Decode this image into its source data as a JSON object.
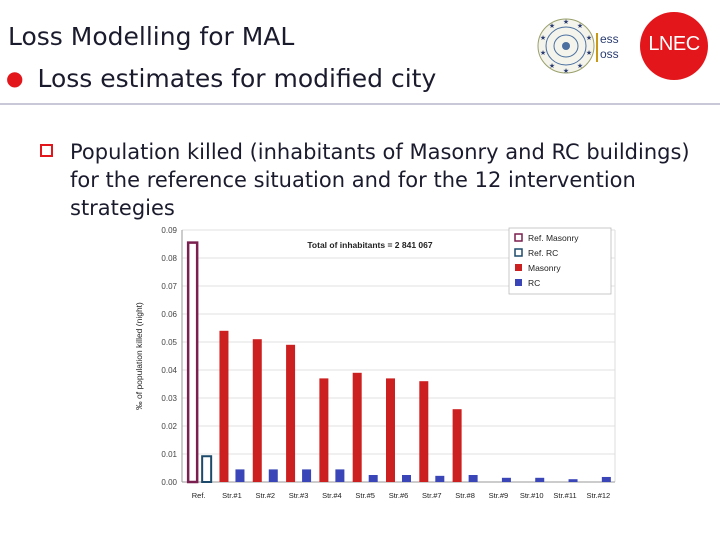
{
  "slide": {
    "title": "Loss Modelling for MAL",
    "subtitle": "Loss estimates for modified city",
    "paragraph": "Population killed (inhabitants of Masonry and RC buildings) for the reference situation and for the 12 intervention strategies"
  },
  "logos": {
    "ess_text_1": "ess",
    "ess_text_2": "oss",
    "lnec": "LNEC"
  },
  "colors": {
    "masonry": "#cc1f1f",
    "rc": "#3a45b8",
    "ref_masonry_outline": "#7a1f4f",
    "ref_rc_outline": "#1d4a6b",
    "accent": "#e3161b"
  },
  "chart_data": {
    "type": "bar",
    "annotation": "Total of inhabitants = 2 841 067",
    "ylabel": "‰ of population killed (night)",
    "xlabel": "",
    "ylim": [
      0,
      0.09
    ],
    "yticks": [
      "0.00",
      "0.01",
      "0.02",
      "0.03",
      "0.04",
      "0.05",
      "0.06",
      "0.07",
      "0.08",
      "0.09"
    ],
    "legend_position": "top-right",
    "legend": [
      "Ref. Masonry",
      "Ref. RC",
      "Masonry",
      "RC"
    ],
    "categories": [
      "Ref.",
      "Str.#1",
      "Str.#2",
      "Str.#3",
      "Str.#4",
      "Str.#5",
      "Str.#6",
      "Str.#7",
      "Str.#8",
      "Str.#9",
      "Str.#10",
      "Str.#11",
      "Str.#12"
    ],
    "series": [
      {
        "name": "Ref. Masonry",
        "values": [
          0.0855,
          null,
          null,
          null,
          null,
          null,
          null,
          null,
          null,
          null,
          null,
          null,
          null
        ]
      },
      {
        "name": "Ref. RC",
        "values": [
          0.0092,
          null,
          null,
          null,
          null,
          null,
          null,
          null,
          null,
          null,
          null,
          null,
          null
        ]
      },
      {
        "name": "Masonry",
        "values": [
          null,
          0.054,
          0.051,
          0.049,
          0.037,
          0.039,
          0.037,
          0.036,
          0.026,
          0.0,
          0.0,
          0.0,
          0.0
        ]
      },
      {
        "name": "RC",
        "values": [
          null,
          0.0045,
          0.0045,
          0.0045,
          0.0045,
          0.0025,
          0.0025,
          0.0022,
          0.0025,
          0.0015,
          0.0015,
          0.001,
          0.0018
        ]
      }
    ]
  }
}
